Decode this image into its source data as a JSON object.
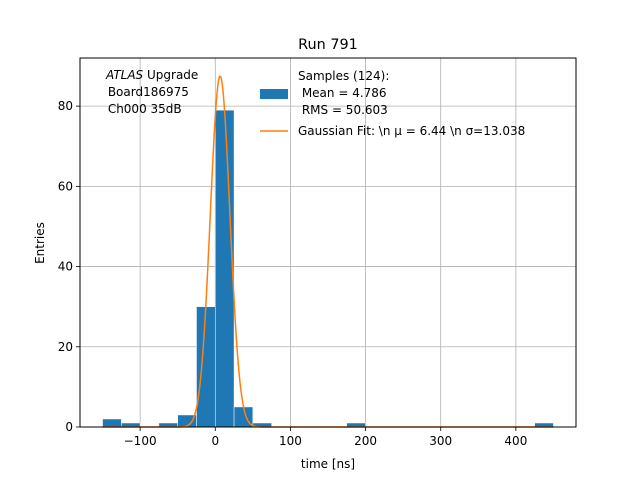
{
  "chart_data": {
    "type": "bar",
    "title": "Run 791",
    "xlabel": "time [ns]",
    "ylabel": "Entries",
    "xlim": [
      -180,
      480
    ],
    "ylim": [
      0,
      92
    ],
    "x_ticks": [
      -100,
      0,
      100,
      200,
      300,
      400
    ],
    "x_tick_labels": [
      "−100",
      "0",
      "100",
      "200",
      "300",
      "400"
    ],
    "y_ticks": [
      0,
      20,
      40,
      60,
      80
    ],
    "y_tick_labels": [
      "0",
      "20",
      "40",
      "60",
      "80"
    ],
    "grid": true,
    "annotation": {
      "line1_italic": "ATLAS",
      "line1_rest": " Upgrade",
      "line2": " Board186975",
      "line3": " Ch000 35dB"
    },
    "legend": {
      "placement": "top-right",
      "samples_line1": "Samples (124):",
      "samples_line2": " Mean = 4.786",
      "samples_line3": " RMS = 50.603",
      "fit_text": "Gaussian Fit: \\n μ = 6.44 \\n σ=13.038"
    },
    "histogram": {
      "name": "Samples (124)",
      "bin_edges": [
        -150,
        -125,
        -100,
        -75,
        -50,
        -25,
        0,
        25,
        50,
        75,
        100,
        125,
        150,
        175,
        200,
        225,
        250,
        275,
        300,
        325,
        350,
        375,
        400,
        425,
        450
      ],
      "bin_width_note": "bins",
      "bars": [
        {
          "x0": -150,
          "x1": -125,
          "value": 2
        },
        {
          "x0": -125,
          "x1": -100,
          "value": 1
        },
        {
          "x0": -75,
          "x1": -50,
          "value": 1
        },
        {
          "x0": -50,
          "x1": -25,
          "value": 3
        },
        {
          "x0": -25,
          "x1": 0,
          "value": 30
        },
        {
          "x0": 0,
          "x1": 25,
          "value": 79
        },
        {
          "x0": 25,
          "x1": 50,
          "value": 5
        },
        {
          "x0": 50,
          "x1": 75,
          "value": 1
        },
        {
          "x0": 175,
          "x1": 200,
          "value": 1
        },
        {
          "x0": 425,
          "x1": 450,
          "value": 1
        }
      ]
    },
    "fit": {
      "name": "Gaussian Fit",
      "mu": 6.44,
      "sigma": 13.038,
      "amplitude": 87.5,
      "x_range": [
        -150,
        450
      ]
    },
    "colors": {
      "bar": "#1f77b4",
      "fit": "#ff7f0e",
      "grid": "#b0b0b0"
    }
  }
}
